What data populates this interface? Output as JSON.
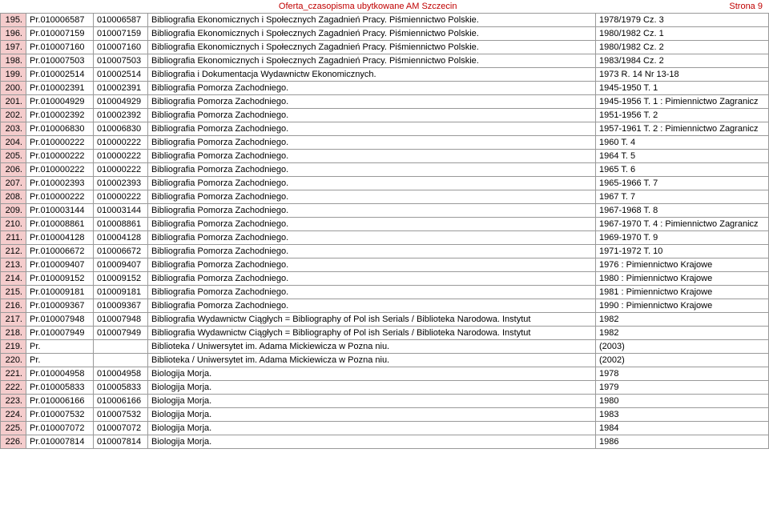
{
  "header": {
    "title": "Oferta_czasopisma ubytkowane AM Szczecin",
    "page": "Strona 9"
  },
  "columns": {
    "idx_bg": "#f4cccc",
    "border_color": "#999999"
  },
  "rows": [
    {
      "n": "195.",
      "c2": "Pr.010006587",
      "c3": "010006587",
      "c4": "Bibliografia Ekonomicznych i Społecznych Zagadnień Pracy. Piśmiennictwo Polskie.",
      "c5": "1978/1979 Cz. 3"
    },
    {
      "n": "196.",
      "c2": "Pr.010007159",
      "c3": "010007159",
      "c4": "Bibliografia Ekonomicznych i Społecznych Zagadnień Pracy. Piśmiennictwo Polskie.",
      "c5": "1980/1982 Cz. 1"
    },
    {
      "n": "197.",
      "c2": "Pr.010007160",
      "c3": "010007160",
      "c4": "Bibliografia Ekonomicznych i Społecznych Zagadnień Pracy. Piśmiennictwo Polskie.",
      "c5": "1980/1982 Cz. 2"
    },
    {
      "n": "198.",
      "c2": "Pr.010007503",
      "c3": "010007503",
      "c4": "Bibliografia Ekonomicznych i Społecznych Zagadnień Pracy. Piśmiennictwo Polskie.",
      "c5": "1983/1984 Cz. 2"
    },
    {
      "n": "199.",
      "c2": "Pr.010002514",
      "c3": "010002514",
      "c4": "Bibliografia i Dokumentacja Wydawnictw Ekonomicznych.",
      "c5": "1973 R. 14 Nr 13-18"
    },
    {
      "n": "200.",
      "c2": "Pr.010002391",
      "c3": "010002391",
      "c4": "Bibliografia Pomorza Zachodniego.",
      "c5": "1945-1950 T. 1"
    },
    {
      "n": "201.",
      "c2": "Pr.010004929",
      "c3": "010004929",
      "c4": "Bibliografia Pomorza Zachodniego.",
      "c5": "1945-1956 T. 1 : Pimiennictwo Zagranicz"
    },
    {
      "n": "202.",
      "c2": "Pr.010002392",
      "c3": "010002392",
      "c4": "Bibliografia Pomorza Zachodniego.",
      "c5": "1951-1956 T. 2"
    },
    {
      "n": "203.",
      "c2": "Pr.010006830",
      "c3": "010006830",
      "c4": "Bibliografia Pomorza Zachodniego.",
      "c5": "1957-1961 T. 2 : Pimiennictwo Zagranicz"
    },
    {
      "n": "204.",
      "c2": "Pr.010000222",
      "c3": "010000222",
      "c4": "Bibliografia Pomorza Zachodniego.",
      "c5": "1960 T. 4"
    },
    {
      "n": "205.",
      "c2": "Pr.010000222",
      "c3": "010000222",
      "c4": "Bibliografia Pomorza Zachodniego.",
      "c5": "1964 T. 5"
    },
    {
      "n": "206.",
      "c2": "Pr.010000222",
      "c3": "010000222",
      "c4": "Bibliografia Pomorza Zachodniego.",
      "c5": "1965 T. 6"
    },
    {
      "n": "207.",
      "c2": "Pr.010002393",
      "c3": "010002393",
      "c4": "Bibliografia Pomorza Zachodniego.",
      "c5": "1965-1966 T. 7"
    },
    {
      "n": "208.",
      "c2": "Pr.010000222",
      "c3": "010000222",
      "c4": "Bibliografia Pomorza Zachodniego.",
      "c5": "1967 T. 7"
    },
    {
      "n": "209.",
      "c2": "Pr.010003144",
      "c3": "010003144",
      "c4": "Bibliografia Pomorza Zachodniego.",
      "c5": "1967-1968 T. 8"
    },
    {
      "n": "210.",
      "c2": "Pr.010008861",
      "c3": "010008861",
      "c4": "Bibliografia Pomorza Zachodniego.",
      "c5": "1967-1970 T. 4 : Pimiennictwo Zagranicz"
    },
    {
      "n": "211.",
      "c2": "Pr.010004128",
      "c3": "010004128",
      "c4": "Bibliografia Pomorza Zachodniego.",
      "c5": "1969-1970 T. 9"
    },
    {
      "n": "212.",
      "c2": "Pr.010006672",
      "c3": "010006672",
      "c4": "Bibliografia Pomorza Zachodniego.",
      "c5": "1971-1972 T. 10"
    },
    {
      "n": "213.",
      "c2": "Pr.010009407",
      "c3": "010009407",
      "c4": "Bibliografia Pomorza Zachodniego.",
      "c5": "1976 : Pimiennictwo Krajowe"
    },
    {
      "n": "214.",
      "c2": "Pr.010009152",
      "c3": "010009152",
      "c4": "Bibliografia Pomorza Zachodniego.",
      "c5": "1980 : Pimiennictwo Krajowe"
    },
    {
      "n": "215.",
      "c2": "Pr.010009181",
      "c3": "010009181",
      "c4": "Bibliografia Pomorza Zachodniego.",
      "c5": "1981 : Pimiennictwo Krajowe"
    },
    {
      "n": "216.",
      "c2": "Pr.010009367",
      "c3": "010009367",
      "c4": "Bibliografia Pomorza Zachodniego.",
      "c5": "1990 : Pimiennictwo Krajowe"
    },
    {
      "n": "217.",
      "c2": "Pr.010007948",
      "c3": "010007948",
      "c4": "Bibliografia Wydawnictw Ciągłych = Bibliography of Pol ish Serials / Biblioteka Narodowa. Instytut",
      "c5": "1982"
    },
    {
      "n": "218.",
      "c2": "Pr.010007949",
      "c3": "010007949",
      "c4": "Bibliografia Wydawnictw Ciągłych = Bibliography of Pol ish Serials / Biblioteka Narodowa. Instytut",
      "c5": "1982"
    },
    {
      "n": "219.",
      "c2": "Pr.",
      "c3": "",
      "c4": "Biblioteka / Uniwersytet im. Adama Mickiewicza w Pozna niu.",
      "c5": "(2003)"
    },
    {
      "n": "220.",
      "c2": "Pr.",
      "c3": "",
      "c4": "Biblioteka / Uniwersytet im. Adama Mickiewicza w Pozna niu.",
      "c5": "(2002)"
    },
    {
      "n": "221.",
      "c2": "Pr.010004958",
      "c3": "010004958",
      "c4": "Biologija Morja.",
      "c5": "1978"
    },
    {
      "n": "222.",
      "c2": "Pr.010005833",
      "c3": "010005833",
      "c4": "Biologija Morja.",
      "c5": "1979"
    },
    {
      "n": "223.",
      "c2": "Pr.010006166",
      "c3": "010006166",
      "c4": "Biologija Morja.",
      "c5": "1980"
    },
    {
      "n": "224.",
      "c2": "Pr.010007532",
      "c3": "010007532",
      "c4": "Biologija Morja.",
      "c5": "1983"
    },
    {
      "n": "225.",
      "c2": "Pr.010007072",
      "c3": "010007072",
      "c4": "Biologija Morja.",
      "c5": "1984"
    },
    {
      "n": "226.",
      "c2": "Pr.010007814",
      "c3": "010007814",
      "c4": "Biologija Morja.",
      "c5": "1986"
    }
  ]
}
